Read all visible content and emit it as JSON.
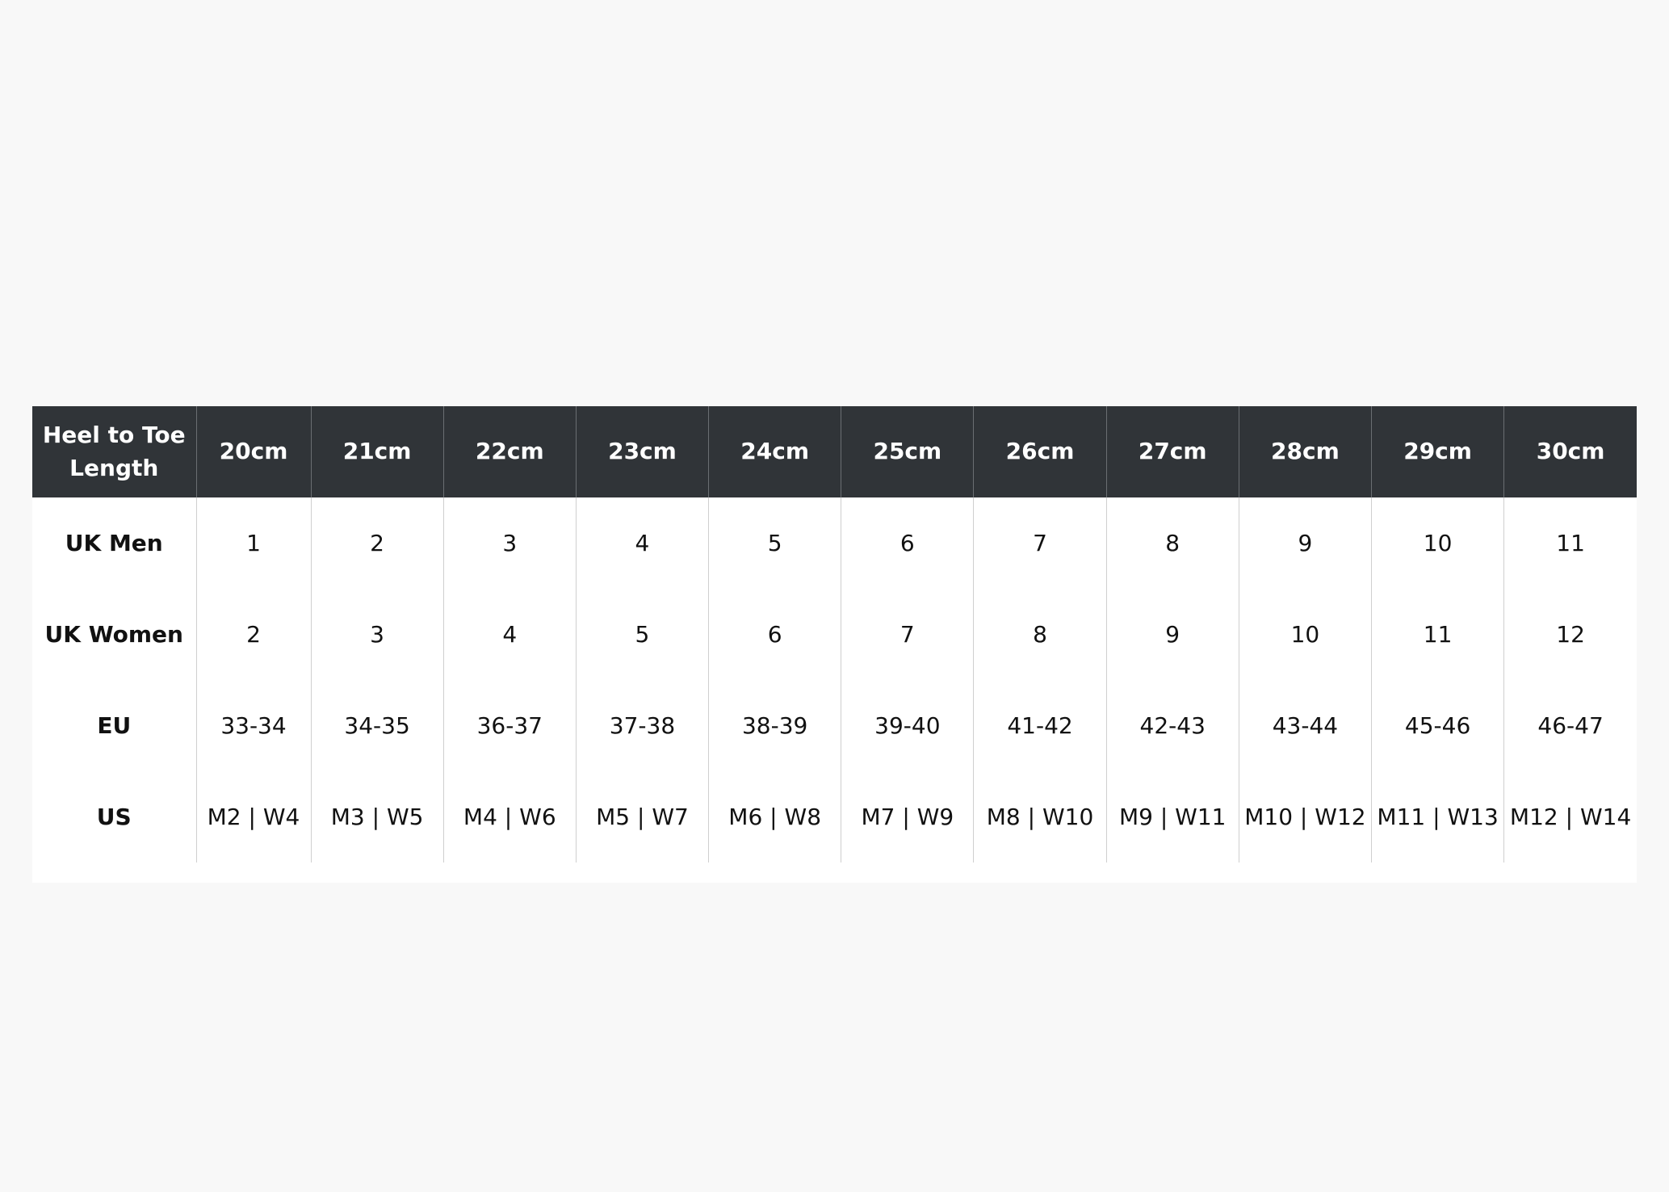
{
  "table": {
    "header": [
      "Heel to Toe Length",
      "20cm",
      "21cm",
      "22cm",
      "23cm",
      "24cm",
      "25cm",
      "26cm",
      "27cm",
      "28cm",
      "29cm",
      "30cm"
    ],
    "rows": [
      [
        "UK Men",
        "1",
        "2",
        "3",
        "4",
        "5",
        "6",
        "7",
        "8",
        "9",
        "10",
        "11"
      ],
      [
        "UK Women",
        "2",
        "3",
        "4",
        "5",
        "6",
        "7",
        "8",
        "9",
        "10",
        "11",
        "12"
      ],
      [
        "EU",
        "33-34",
        "34-35",
        "36-37",
        "37-38",
        "38-39",
        "39-40",
        "41-42",
        "42-43",
        "43-44",
        "45-46",
        "46-47"
      ],
      [
        "US",
        "M2 | W4",
        "M3 | W5",
        "M4 | W6",
        "M5 | W7",
        "M6 | W8",
        "M7 | W9",
        "M8 | W10",
        "M9 | W11",
        "M10 | W12",
        "M11 | W13",
        "M12 | W14"
      ]
    ]
  }
}
